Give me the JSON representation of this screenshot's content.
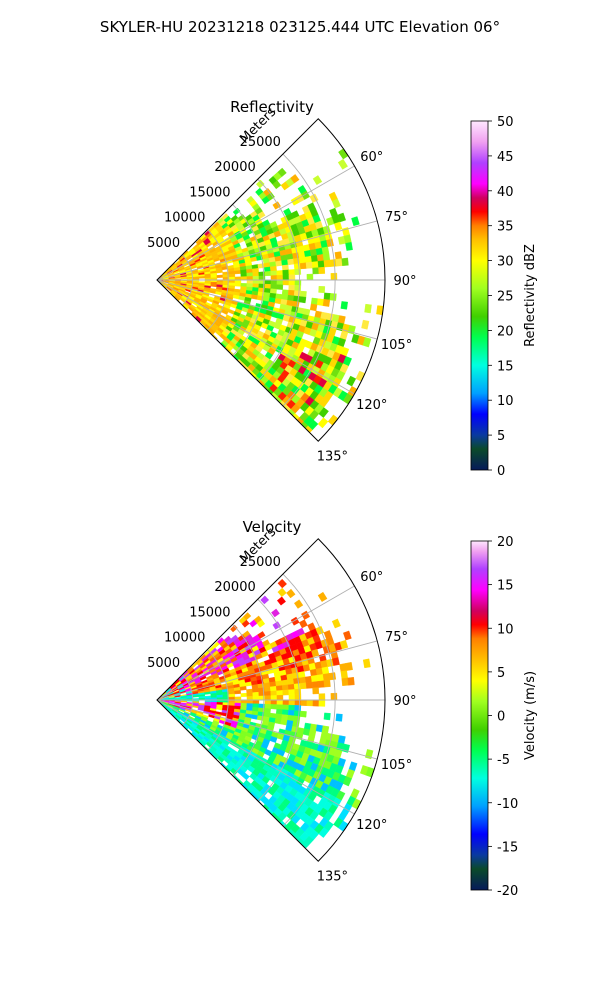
{
  "figure_title": "SKYLER-HU  20231218  023125.444 UTC Elevation 06°",
  "chart_data": [
    {
      "type": "heatmap",
      "projection": "polar-sector",
      "title": "Reflectivity",
      "radial_axis_label": "Meters",
      "radial_ticks": [
        "5000",
        "10000",
        "15000",
        "20000",
        "25000"
      ],
      "azimuth_ticks": [
        "60°",
        "75°",
        "90°",
        "105°",
        "120°",
        "135°"
      ],
      "azimuth_range_deg": [
        45,
        135
      ],
      "range_max_m": 32000,
      "colorbar": {
        "label": "Reflectivity dBZ",
        "range": [
          0,
          50
        ],
        "ticks": [
          "0",
          "5",
          "10",
          "15",
          "20",
          "25",
          "30",
          "35",
          "40",
          "45",
          "50"
        ]
      }
    },
    {
      "type": "heatmap",
      "projection": "polar-sector",
      "title": "Velocity",
      "radial_axis_label": "Meters",
      "radial_ticks": [
        "5000",
        "10000",
        "15000",
        "20000",
        "25000"
      ],
      "azimuth_ticks": [
        "60°",
        "75°",
        "90°",
        "105°",
        "120°",
        "135°"
      ],
      "azimuth_range_deg": [
        45,
        135
      ],
      "range_max_m": 32000,
      "colorbar": {
        "label": "Velocity (m/s)",
        "range": [
          -20,
          20
        ],
        "ticks": [
          "-20",
          "-15",
          "-10",
          "-5",
          "0",
          "5",
          "10",
          "15",
          "20"
        ]
      }
    }
  ]
}
